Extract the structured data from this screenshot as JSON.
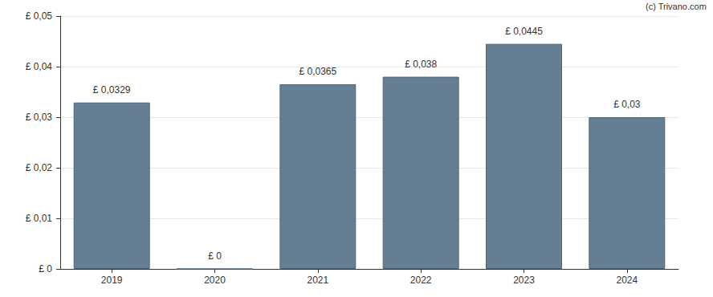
{
  "chart_data": {
    "type": "bar",
    "categories": [
      "2019",
      "2020",
      "2021",
      "2022",
      "2023",
      "2024"
    ],
    "values": [
      0.0329,
      0,
      0.0365,
      0.038,
      0.0445,
      0.03
    ],
    "value_labels": [
      "£ 0,0329",
      "£ 0",
      "£ 0,0365",
      "£ 0,038",
      "£ 0,0445",
      "£ 0,03"
    ],
    "data_labels": true,
    "color": "#647f94",
    "ylim": [
      0,
      0.05
    ],
    "yticks": [
      {
        "value": 0,
        "label": "£ 0"
      },
      {
        "value": 0.01,
        "label": "£ 0,01"
      },
      {
        "value": 0.02,
        "label": "£ 0,02"
      },
      {
        "value": 0.03,
        "label": "£ 0,03"
      },
      {
        "value": 0.04,
        "label": "£ 0,04"
      },
      {
        "value": 0.05,
        "label": "£ 0,05"
      }
    ],
    "grid": true,
    "annotations": [
      "(c) Trivano.com"
    ]
  }
}
